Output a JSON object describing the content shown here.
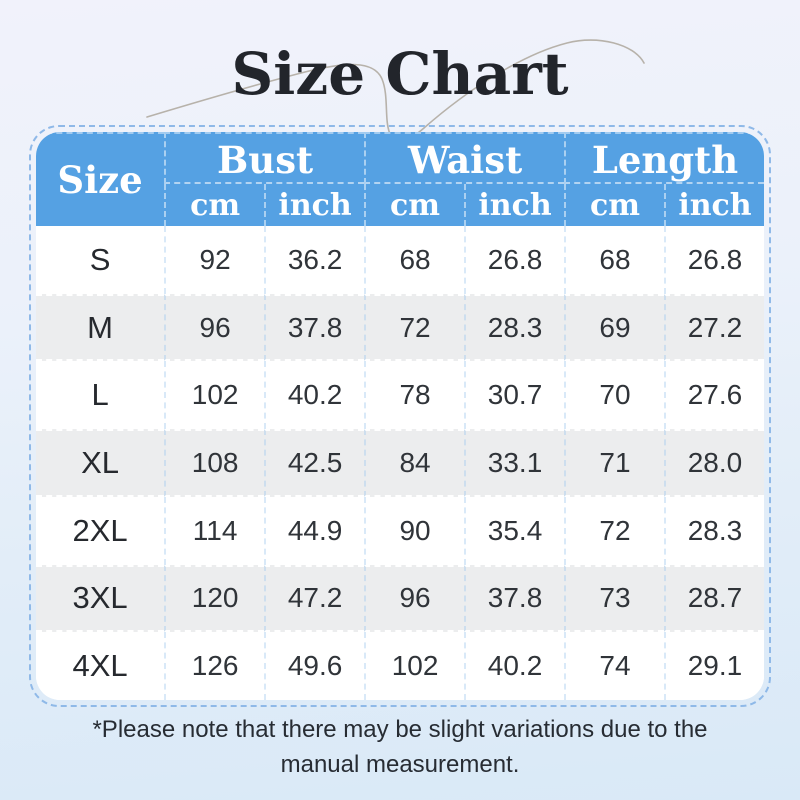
{
  "page": {
    "title": "Size Chart",
    "note": {
      "line1": "*Please note that there may be slight variations due to the",
      "line2": "manual measurement."
    }
  },
  "colors": {
    "header_blue": "#55A1E3",
    "alt_row_gray": "#ECEDEE",
    "dashed_border_blue": "#8FB9E8",
    "title_text": "#22252B",
    "body_text": "#303439",
    "swirl_line": "#ADA79B"
  },
  "table": {
    "size_header": "Size",
    "group_headers": [
      "Bust",
      "Waist",
      "Length"
    ],
    "unit_headers": [
      "cm",
      "inch",
      "cm",
      "inch",
      "cm",
      "inch"
    ],
    "rows": [
      {
        "size": "S",
        "values": [
          "92",
          "36.2",
          "68",
          "26.8",
          "68",
          "26.8"
        ]
      },
      {
        "size": "M",
        "values": [
          "96",
          "37.8",
          "72",
          "28.3",
          "69",
          "27.2"
        ]
      },
      {
        "size": "L",
        "values": [
          "102",
          "40.2",
          "78",
          "30.7",
          "70",
          "27.6"
        ]
      },
      {
        "size": "XL",
        "values": [
          "108",
          "42.5",
          "84",
          "33.1",
          "71",
          "28.0"
        ]
      },
      {
        "size": "2XL",
        "values": [
          "114",
          "44.9",
          "90",
          "35.4",
          "72",
          "28.3"
        ]
      },
      {
        "size": "3XL",
        "values": [
          "120",
          "47.2",
          "96",
          "37.8",
          "73",
          "28.7"
        ]
      },
      {
        "size": "4XL",
        "values": [
          "126",
          "49.6",
          "102",
          "40.2",
          "74",
          "29.1"
        ]
      }
    ]
  },
  "chart_data": {
    "type": "table",
    "title": "Size Chart",
    "columns": [
      "Size",
      "Bust (cm)",
      "Bust (inch)",
      "Waist (cm)",
      "Waist (inch)",
      "Length (cm)",
      "Length (inch)"
    ],
    "rows": [
      [
        "S",
        92,
        36.2,
        68,
        26.8,
        68,
        26.8
      ],
      [
        "M",
        96,
        37.8,
        72,
        28.3,
        69,
        27.2
      ],
      [
        "L",
        102,
        40.2,
        78,
        30.7,
        70,
        27.6
      ],
      [
        "XL",
        108,
        42.5,
        84,
        33.1,
        71,
        28.0
      ],
      [
        "2XL",
        114,
        44.9,
        90,
        35.4,
        72,
        28.3
      ],
      [
        "3XL",
        120,
        47.2,
        96,
        37.8,
        73,
        28.7
      ],
      [
        "4XL",
        126,
        49.6,
        102,
        40.2,
        74,
        29.1
      ]
    ],
    "footnote": "*Please note that there may be slight variations due to the manual measurement."
  }
}
